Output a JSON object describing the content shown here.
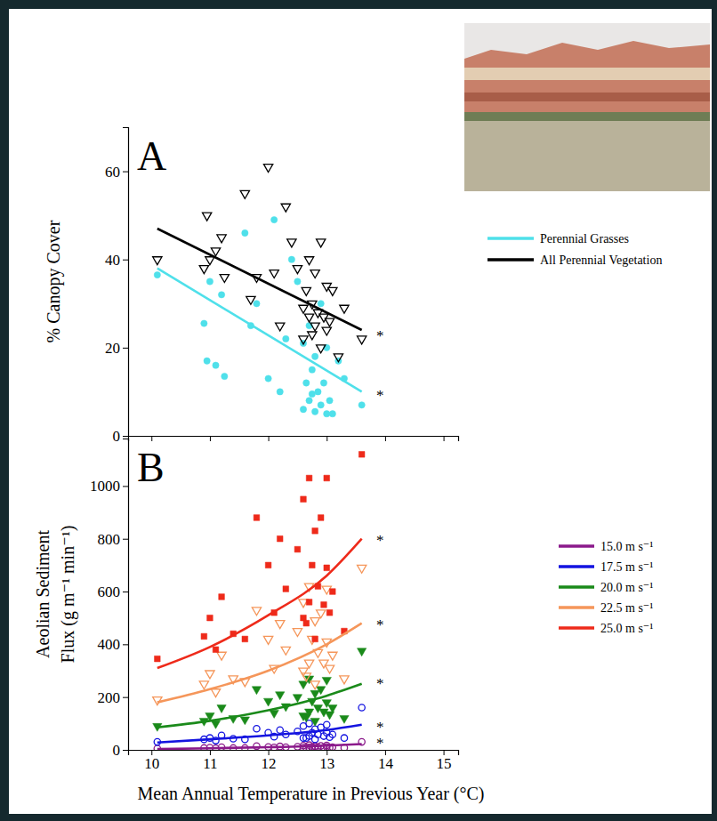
{
  "chart_data": [
    {
      "type": "scatter",
      "title": "A",
      "y_label": "% Canopy Cover",
      "xlim": [
        9.6,
        15.25
      ],
      "xticks": [
        10,
        11,
        12,
        13,
        14,
        15
      ],
      "ylim": [
        0,
        70
      ],
      "yticks": [
        0,
        20,
        40,
        60
      ],
      "tick_labels": "y",
      "legend": "right",
      "x": [
        10.1,
        10.9,
        10.95,
        11.0,
        11.1,
        11.2,
        11.25,
        11.6,
        11.7,
        11.8,
        12.0,
        12.1,
        12.2,
        12.3,
        12.4,
        12.5,
        12.6,
        12.6,
        12.65,
        12.7,
        12.7,
        12.75,
        12.8,
        12.8,
        12.85,
        12.9,
        12.9,
        12.95,
        13.0,
        13.0,
        13.05,
        13.1,
        13.2,
        13.3,
        13.6,
        12.75
      ],
      "series": [
        {
          "type": "scatter",
          "marker": "circle",
          "color": "#4fe0ea",
          "values": [
            36.5,
            25.5,
            17,
            35,
            16,
            32,
            13.5,
            46,
            25,
            30,
            13,
            49,
            10,
            22,
            40,
            35,
            21,
            6,
            12,
            25,
            8,
            15,
            5.5,
            18,
            10,
            30,
            7,
            12,
            5,
            20,
            8,
            5,
            17,
            13,
            7,
            9.5
          ]
        },
        {
          "type": "scatter",
          "marker": "triangle-down-open",
          "color": "#000000",
          "values": [
            40,
            38,
            50,
            40,
            42,
            45,
            36,
            55,
            31,
            36,
            61,
            37,
            25,
            52,
            44,
            38,
            29,
            22,
            33,
            27,
            40,
            30,
            25,
            37,
            28,
            44,
            20,
            27,
            24,
            34,
            26,
            33,
            18,
            29,
            22,
            23
          ]
        },
        {
          "type": "line",
          "name": "Perennial Grasses",
          "color": "#4fe0ea",
          "x": [
            10.1,
            13.6
          ],
          "values": [
            38,
            10
          ]
        },
        {
          "type": "line",
          "name": "All Perennial Vegetation",
          "color": "#000000",
          "x": [
            10.1,
            13.6
          ],
          "values": [
            47,
            24
          ]
        }
      ],
      "annotations": [
        {
          "x": 13.85,
          "y": 23,
          "text": "*",
          "color": "#000000"
        },
        {
          "x": 13.85,
          "y": 9.5,
          "text": "*",
          "color": "#4fe0ea"
        }
      ]
    },
    {
      "type": "scatter",
      "title": "B",
      "y_label": "Aeolian Sediment Flux (g m⁻¹ min⁻¹)",
      "x_label": "Mean Annual Temperature in Previous Year (°C)",
      "xlim": [
        9.6,
        15.25
      ],
      "xticks": [
        10,
        11,
        12,
        13,
        14,
        15
      ],
      "ylim": [
        0,
        1180
      ],
      "yticks": [
        0,
        200,
        400,
        600,
        800,
        1000
      ],
      "legend": "right",
      "x": [
        10.1,
        10.9,
        11.0,
        11.1,
        11.2,
        11.4,
        11.6,
        11.8,
        12.0,
        12.1,
        12.2,
        12.3,
        12.5,
        12.6,
        12.6,
        12.65,
        12.7,
        12.7,
        12.75,
        12.8,
        12.8,
        12.85,
        12.9,
        12.95,
        13.0,
        13.0,
        13.05,
        13.1,
        13.3,
        13.6
      ],
      "series": [
        {
          "type": "scatter",
          "marker": "circle-open",
          "color": "#8b1a8b",
          "values": [
            5,
            7,
            8,
            6,
            10,
            7,
            7,
            14,
            11,
            9,
            13,
            10,
            12,
            8,
            16,
            8,
            18,
            9,
            11,
            14,
            7,
            10,
            15,
            9,
            17,
            11,
            8,
            10,
            8,
            30
          ]
        },
        {
          "type": "scatter",
          "marker": "circle-open",
          "color": "#1414e0",
          "values": [
            30,
            40,
            45,
            35,
            55,
            42,
            40,
            80,
            65,
            50,
            75,
            58,
            70,
            45,
            90,
            45,
            100,
            52,
            65,
            78,
            40,
            58,
            85,
            52,
            95,
            65,
            48,
            58,
            45,
            160
          ]
        },
        {
          "type": "scatter",
          "marker": "triangle-down",
          "color": "#1a8a1a",
          "values": [
            90,
            110,
            130,
            100,
            160,
            120,
            115,
            230,
            185,
            140,
            210,
            165,
            200,
            130,
            250,
            125,
            270,
            145,
            185,
            215,
            110,
            160,
            230,
            145,
            265,
            180,
            135,
            160,
            120,
            375
          ]
        },
        {
          "type": "scatter",
          "marker": "triangle-down-open",
          "color": "#f5965a",
          "values": [
            190,
            250,
            290,
            220,
            360,
            270,
            260,
            530,
            420,
            310,
            480,
            380,
            450,
            300,
            560,
            280,
            620,
            330,
            420,
            490,
            250,
            370,
            520,
            330,
            610,
            410,
            310,
            360,
            270,
            690
          ]
        },
        {
          "type": "scatter",
          "marker": "square",
          "color": "#ee2a1a",
          "values": [
            345,
            430,
            500,
            380,
            580,
            440,
            420,
            880,
            700,
            520,
            800,
            610,
            760,
            500,
            950,
            480,
            1030,
            560,
            700,
            830,
            420,
            620,
            880,
            550,
            1030,
            690,
            520,
            600,
            450,
            1120
          ]
        },
        {
          "type": "line",
          "name": "15.0 m s⁻¹",
          "color": "#8b1a8b",
          "x": [
            10.1,
            11,
            12,
            13,
            13.6
          ],
          "values": [
            3,
            6,
            10,
            16,
            22
          ]
        },
        {
          "type": "line",
          "name": "17.5 m s⁻¹",
          "color": "#1414e0",
          "x": [
            10.1,
            11,
            12,
            13,
            13.6
          ],
          "values": [
            28,
            40,
            55,
            75,
            95
          ]
        },
        {
          "type": "line",
          "name": "20.0 m s⁻¹",
          "color": "#1a8a1a",
          "x": [
            10.1,
            11,
            12,
            13,
            13.6
          ],
          "values": [
            85,
            110,
            150,
            205,
            250
          ]
        },
        {
          "type": "line",
          "name": "22.5 m s⁻¹",
          "color": "#f5965a",
          "x": [
            10.1,
            11,
            12,
            13,
            13.6
          ],
          "values": [
            180,
            230,
            300,
            400,
            480
          ]
        },
        {
          "type": "line",
          "name": "25.0 m s⁻¹",
          "color": "#ee2a1a",
          "x": [
            10.1,
            11,
            12,
            13,
            13.6
          ],
          "values": [
            310,
            390,
            510,
            660,
            800
          ]
        }
      ],
      "annotations": [
        {
          "x": 13.85,
          "y": 800,
          "text": "*",
          "color": "#ee2a1a"
        },
        {
          "x": 13.85,
          "y": 480,
          "text": "*",
          "color": "#f5965a"
        },
        {
          "x": 13.85,
          "y": 255,
          "text": "*",
          "color": "#1a8a1a"
        },
        {
          "x": 13.85,
          "y": 90,
          "text": "*",
          "color": "#1414e0"
        },
        {
          "x": 13.85,
          "y": 30,
          "text": "*",
          "color": "#8b1a8b"
        }
      ]
    }
  ]
}
